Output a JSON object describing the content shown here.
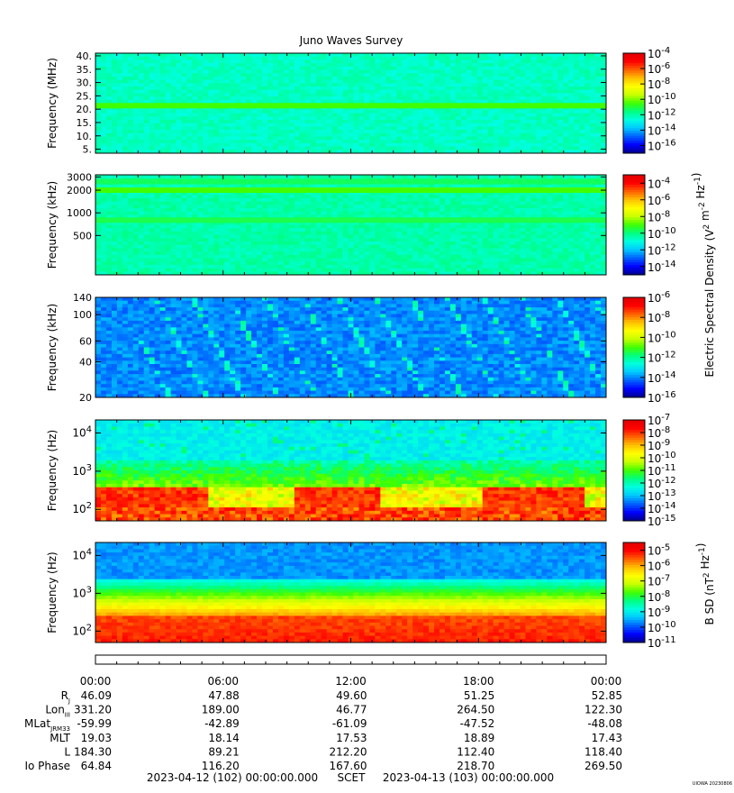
{
  "title": "Juno Waves Survey",
  "footer_stamp": "UIOWA 20230806",
  "colors": {
    "colormap": [
      "#00008b",
      "#0000ff",
      "#0060ff",
      "#00c8ff",
      "#00ffe0",
      "#00ff80",
      "#40ff00",
      "#c8ff00",
      "#ffff00",
      "#ffc000",
      "#ff6000",
      "#ff0000",
      "#e00000"
    ]
  },
  "chart_data": [
    {
      "type": "heatmap",
      "panel": "mhz",
      "ylabel": "Frequency (MHz)",
      "yscale": "linear",
      "ylim": [
        3.5,
        41
      ],
      "yticks": [
        5,
        10,
        15,
        20,
        25,
        30,
        35,
        40
      ],
      "yticklabels": [
        "5.",
        "10.",
        "15.",
        "20.",
        "25.",
        "30.",
        "35.",
        "40."
      ],
      "colorbar": {
        "labels": [
          "-4",
          "-6",
          "-8",
          "-10",
          "-12",
          "-14",
          "-16"
        ],
        "log_range": [
          -17,
          -4
        ]
      },
      "background_level": 0.36,
      "bands": [
        {
          "y": 21.3,
          "level": 0.5
        }
      ]
    },
    {
      "type": "heatmap",
      "panel": "khz_high",
      "ylabel": "Frequency (kHz)",
      "yscale": "log",
      "ylim": [
        150,
        3200
      ],
      "yticks": [
        500,
        1000,
        2000,
        3000
      ],
      "yticklabels": [
        "500",
        "1000",
        "2000",
        "3000"
      ],
      "colorbar": {
        "labels": [
          "-4",
          "-6",
          "-8",
          "-10",
          "-12",
          "-14"
        ],
        "log_range": [
          -15,
          -3
        ]
      },
      "background_level": 0.38,
      "bands": [
        {
          "y": 2000,
          "level": 0.5
        },
        {
          "y": 2600,
          "level": 0.44
        },
        {
          "y": 800,
          "level": 0.45
        }
      ]
    },
    {
      "type": "heatmap",
      "panel": "khz_low",
      "ylabel": "Frequency (kHz)",
      "yscale": "log",
      "ylim": [
        20,
        140
      ],
      "yticks": [
        20,
        40,
        60,
        100,
        140
      ],
      "yticklabels": [
        "20",
        "40",
        "60",
        "100",
        "140"
      ],
      "colorbar": {
        "labels": [
          "-6",
          "-8",
          "-10",
          "-12",
          "-14",
          "-16"
        ],
        "log_range": [
          -16,
          -6
        ]
      },
      "background_level": 0.16
    },
    {
      "type": "heatmap",
      "panel": "hz_e",
      "ylabel": "Frequency (Hz)",
      "yscale": "log",
      "ylim": [
        50,
        22000
      ],
      "yticks": [
        100,
        1000,
        10000
      ],
      "yticklabels": [
        "10^2",
        "10^3",
        "10^4"
      ],
      "colorbar": {
        "labels": [
          "-7",
          "-8",
          "-9",
          "-10",
          "-11",
          "-12",
          "-13",
          "-14",
          "-15"
        ],
        "log_range": [
          -15,
          -7
        ]
      },
      "background_level": 0.3
    },
    {
      "type": "heatmap",
      "panel": "hz_b",
      "ylabel": "Frequency (Hz)",
      "yscale": "log",
      "ylim": [
        50,
        22000
      ],
      "yticks": [
        100,
        1000,
        10000
      ],
      "yticklabels": [
        "10^2",
        "10^3",
        "10^4"
      ],
      "colorbar": {
        "labels": [
          "-5",
          "-6",
          "-7",
          "-8",
          "-9",
          "-10",
          "-11"
        ],
        "log_range": [
          -11,
          -4.5
        ]
      },
      "background_level": 0.5
    }
  ],
  "colorbar_titles": {
    "electric": "Electric Spectral Density (V^2 m^-2 Hz^-1)",
    "magnetic": "B SD (nT^2 Hz^-1)"
  },
  "time_axis": {
    "ticks": [
      "00:00",
      "06:00",
      "12:00",
      "18:00",
      "00:00"
    ],
    "hours": [
      0,
      6,
      12,
      18,
      24
    ]
  },
  "ephemeris": {
    "labels": [
      "R_J",
      "Lon_III",
      "MLat_JRM33",
      "MLT",
      "L",
      "Io Phase"
    ],
    "rows": [
      [
        "46.09",
        "47.88",
        "49.60",
        "51.25",
        "52.85"
      ],
      [
        "331.20",
        "189.00",
        "46.77",
        "264.50",
        "122.30"
      ],
      [
        "-59.99",
        "-42.89",
        "-61.09",
        "-47.52",
        "-48.08"
      ],
      [
        "19.03",
        "18.14",
        "17.53",
        "18.89",
        "17.43"
      ],
      [
        "184.30",
        "89.21",
        "212.20",
        "112.40",
        "118.40"
      ],
      [
        "64.84",
        "116.20",
        "167.60",
        "218.70",
        "269.50"
      ]
    ]
  },
  "time_range": {
    "start": "2023-04-12 (102) 00:00:00.000",
    "label": "SCET",
    "end": "2023-04-13 (103) 00:00:00.000"
  }
}
